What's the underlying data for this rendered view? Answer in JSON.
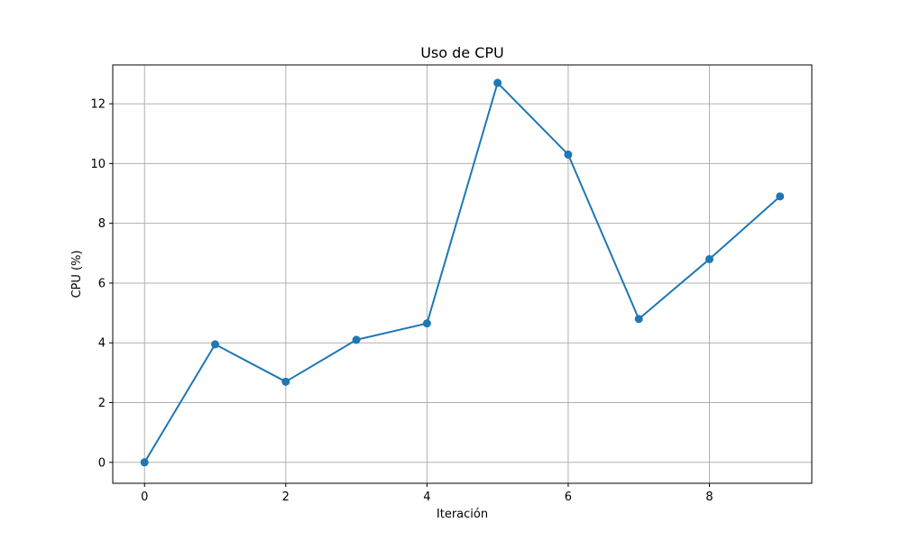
{
  "chart_data": {
    "type": "line",
    "title": "Uso de CPU",
    "xlabel": "Iteración",
    "ylabel": "CPU (%)",
    "x": [
      0,
      1,
      2,
      3,
      4,
      5,
      6,
      7,
      8,
      9
    ],
    "series": [
      {
        "values": [
          0.0,
          3.95,
          2.7,
          4.1,
          4.65,
          12.7,
          10.3,
          4.8,
          6.8,
          8.9
        ],
        "color": "#1f77b4",
        "marker": "circle"
      }
    ],
    "xlim": [
      -0.45,
      9.45
    ],
    "ylim": [
      -0.7,
      13.3
    ],
    "xticks": [
      0,
      2,
      4,
      6,
      8
    ],
    "yticks": [
      0,
      2,
      4,
      6,
      8,
      10,
      12
    ],
    "grid": true,
    "legend": false
  },
  "colors": {
    "line": "#1f77b4",
    "grid": "#b0b0b0",
    "axes": "#000000",
    "background": "#ffffff"
  }
}
